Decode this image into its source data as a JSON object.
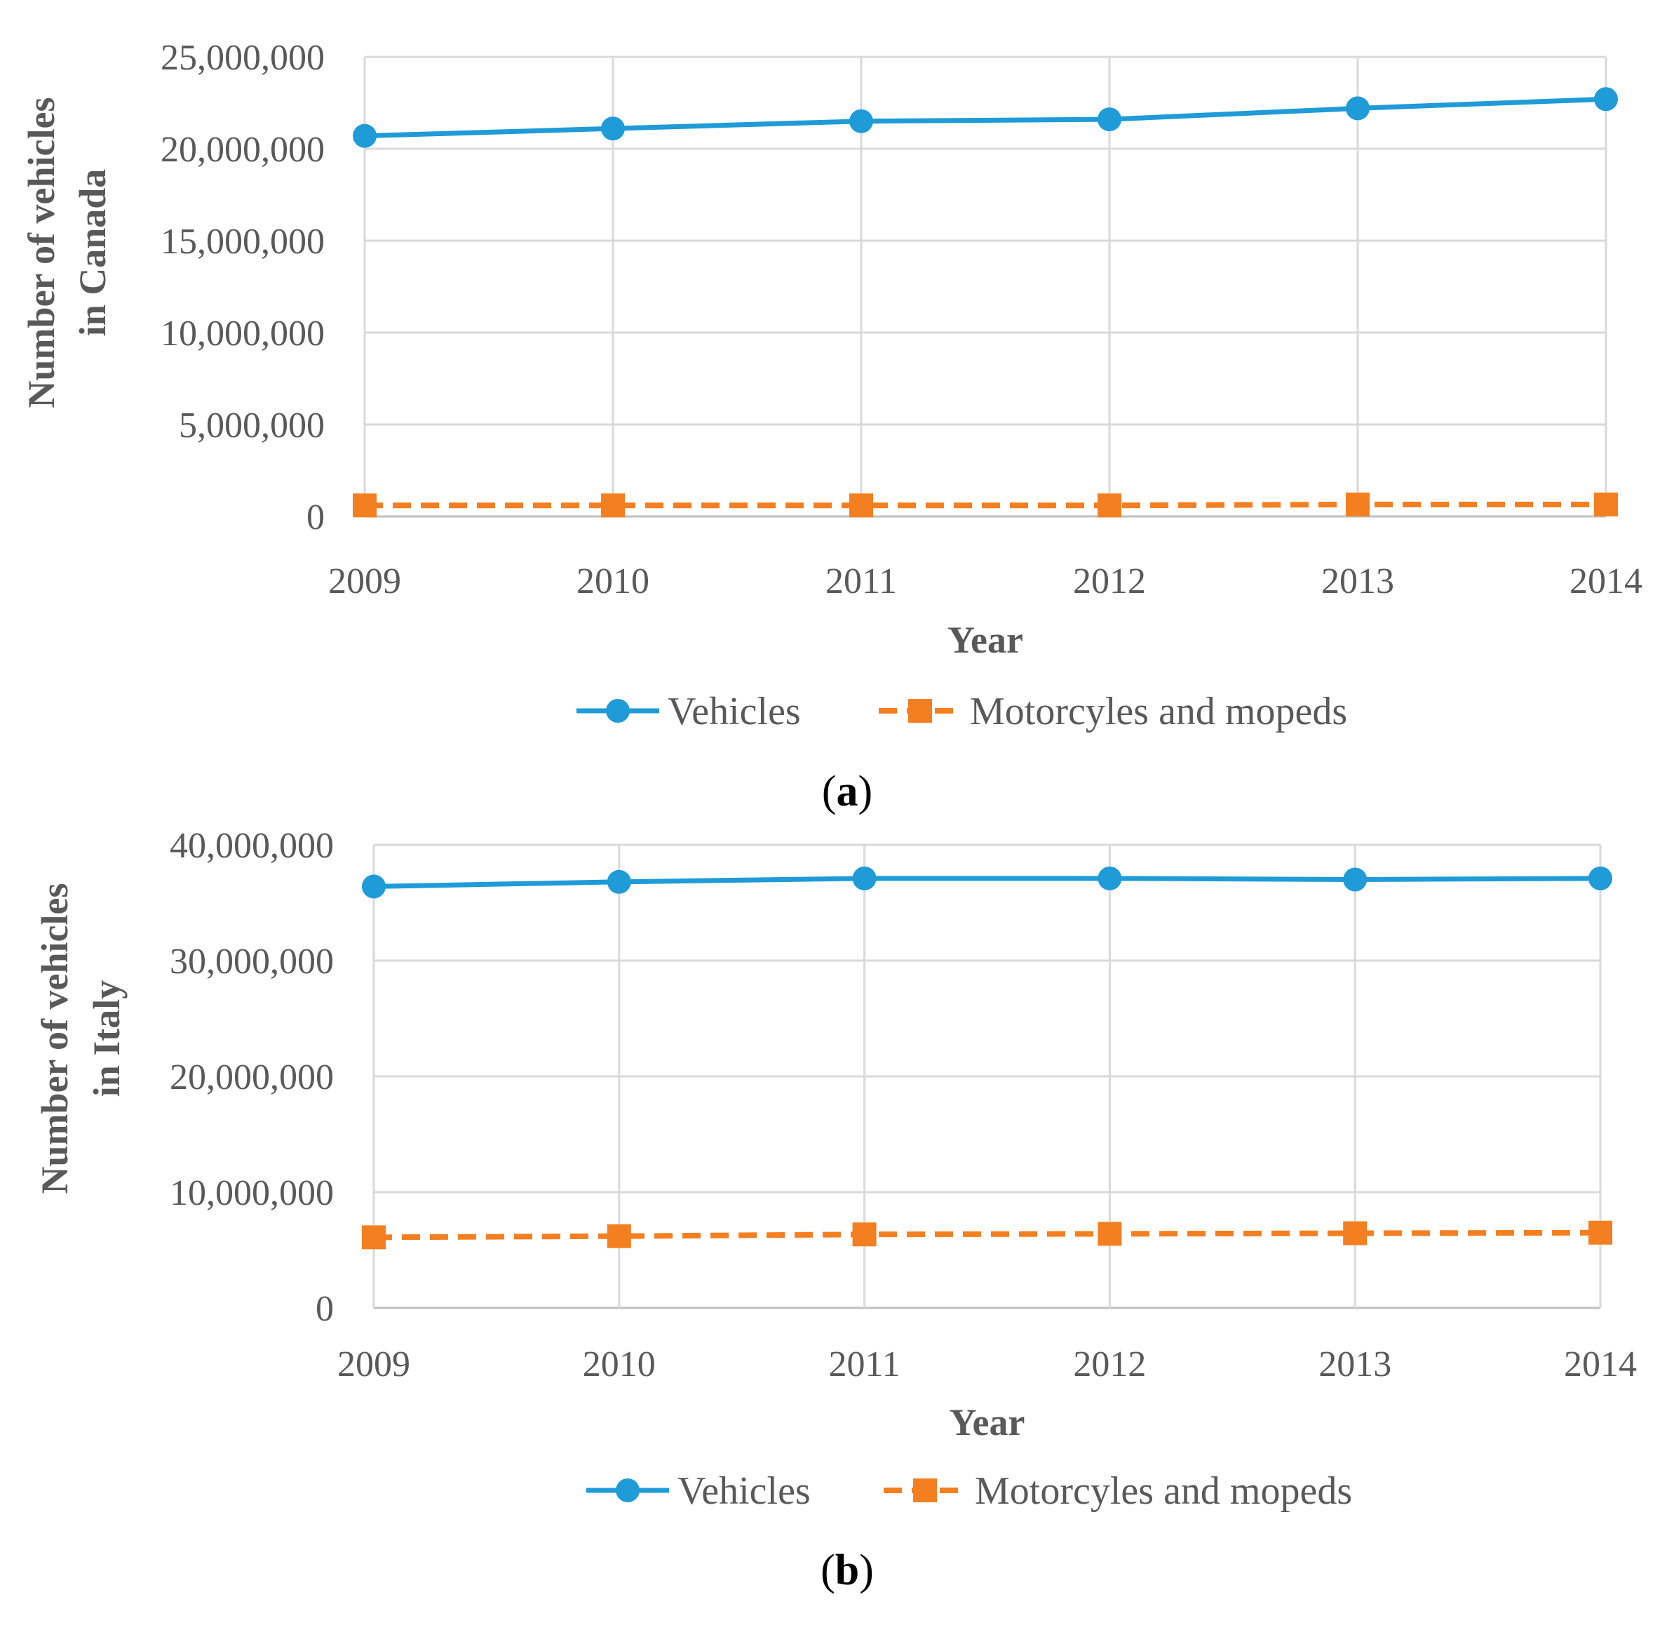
{
  "chart_data": [
    {
      "type": "line",
      "panel": "a",
      "categories": [
        "2009",
        "2010",
        "2011",
        "2012",
        "2013",
        "2014"
      ],
      "series": [
        {
          "name": "Vehicles",
          "values": [
            20700000,
            21100000,
            21500000,
            21600000,
            22200000,
            22700000
          ],
          "color": "#1f9bd7",
          "marker": "circle",
          "style": "solid"
        },
        {
          "name": "Motorcyles and mopeds",
          "values": [
            600000,
            600000,
            600000,
            600000,
            650000,
            650000
          ],
          "color": "#f47f20",
          "marker": "square",
          "style": "dashed"
        }
      ],
      "xlabel": "Year",
      "ylabel": [
        "Number of vehicles",
        "in Canada"
      ],
      "ylim": [
        0,
        25000000
      ],
      "yticks": [
        0,
        5000000,
        10000000,
        15000000,
        20000000,
        25000000
      ],
      "ytick_labels": [
        "0",
        "5,000,000",
        "10,000,000",
        "15,000,000",
        "20,000,000",
        "25,000,000"
      ],
      "grid": true,
      "legend": "bottom",
      "caption": {
        "open": "(",
        "letter": "a",
        "close": ")"
      }
    },
    {
      "type": "line",
      "panel": "b",
      "categories": [
        "2009",
        "2010",
        "2011",
        "2012",
        "2013",
        "2014"
      ],
      "series": [
        {
          "name": "Vehicles",
          "values": [
            36400000,
            36800000,
            37100000,
            37100000,
            37000000,
            37100000
          ],
          "color": "#1f9bd7",
          "marker": "circle",
          "style": "solid"
        },
        {
          "name": "Motorcyles and mopeds",
          "values": [
            6100000,
            6200000,
            6350000,
            6400000,
            6450000,
            6500000
          ],
          "color": "#f47f20",
          "marker": "square",
          "style": "dashed"
        }
      ],
      "xlabel": "Year",
      "ylabel": [
        "Number of vehicles",
        "in Italy"
      ],
      "ylim": [
        0,
        40000000
      ],
      "yticks": [
        0,
        10000000,
        20000000,
        30000000,
        40000000
      ],
      "ytick_labels": [
        "0",
        "10,000,000",
        "20,000,000",
        "30,000,000",
        "40,000,000"
      ],
      "grid": true,
      "legend": "bottom",
      "caption": {
        "open": "(",
        "letter": "b",
        "close": ")"
      }
    }
  ]
}
